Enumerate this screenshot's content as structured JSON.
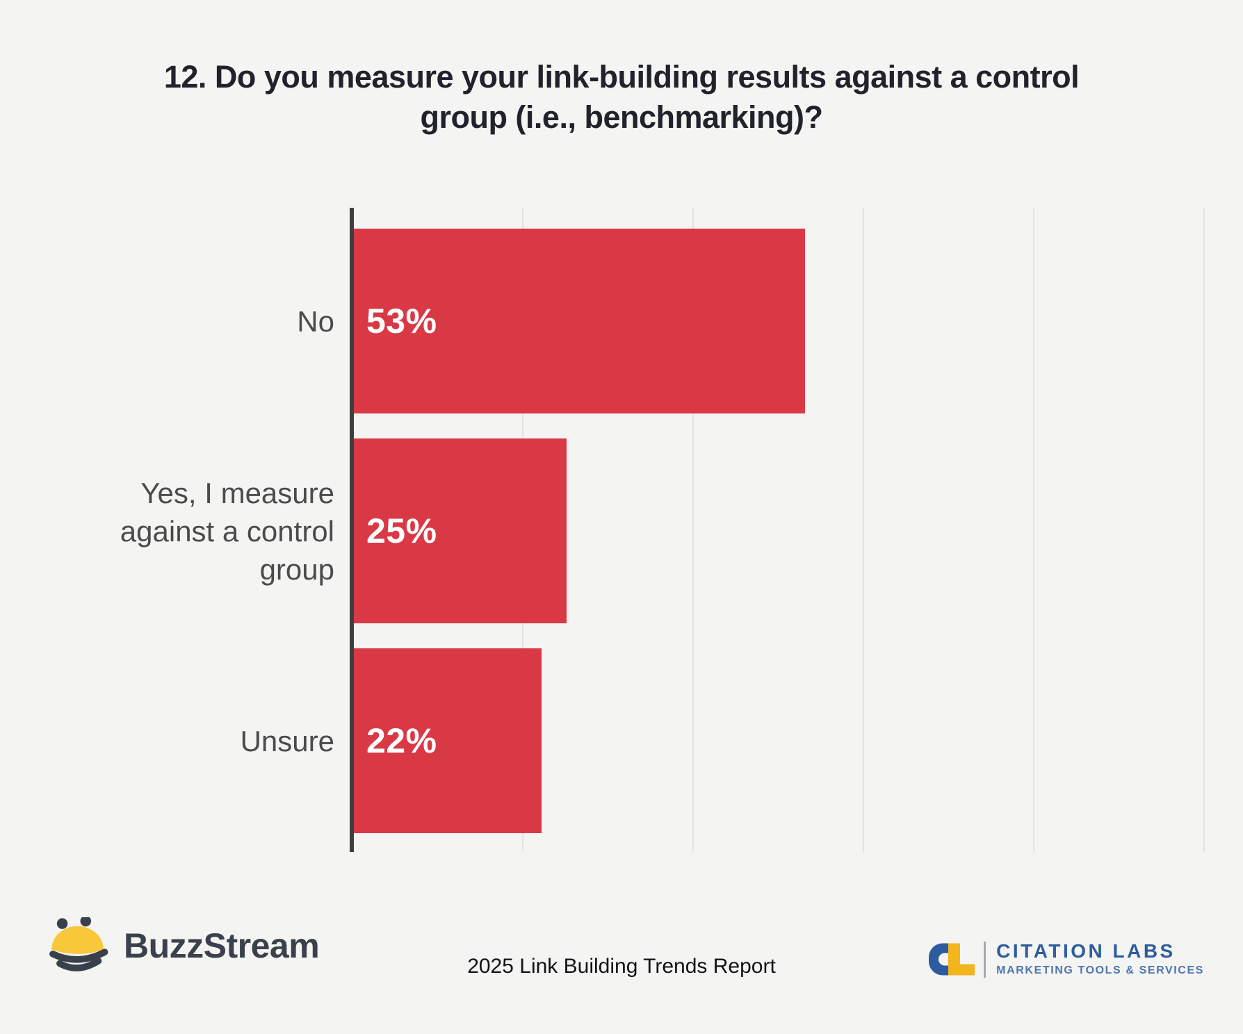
{
  "page": {
    "background": "#F4F4F2"
  },
  "title": {
    "line1": "12. Do you measure your link-building results against a control",
    "line2": "group (i.e., benchmarking)?"
  },
  "chart_data": {
    "type": "bar",
    "orientation": "horizontal",
    "title": "12. Do you measure your link-building results against a control group (i.e., benchmarking)?",
    "categories": [
      "No",
      "Yes, I measure against a control group",
      "Unsure"
    ],
    "values": [
      53,
      25,
      22
    ],
    "value_labels": [
      "53%",
      "25%",
      "22%"
    ],
    "xlim": [
      0,
      100
    ],
    "gridlines_pct": [
      20,
      40,
      60,
      80,
      100
    ],
    "grid": true,
    "legend_position": "none",
    "bar_color": "#D93845",
    "axis_color": "#3E3E3E",
    "gridline_color": "#E3E3E1",
    "label_color": "#4B4B4B",
    "value_text_color": "#FFFFFF"
  },
  "footer": {
    "buzzstream_logo": {
      "text": "BuzzStream",
      "bee_yellow": "#F9C73A",
      "bee_dark": "#39404B"
    },
    "report_label": "2025 Link Building Trends Report",
    "citation_labs_logo": {
      "name": "CITATION LABS",
      "tagline": "MARKETING TOOLS & SERVICES",
      "blue": "#2D5C9E",
      "yellow": "#F2B51D"
    }
  }
}
